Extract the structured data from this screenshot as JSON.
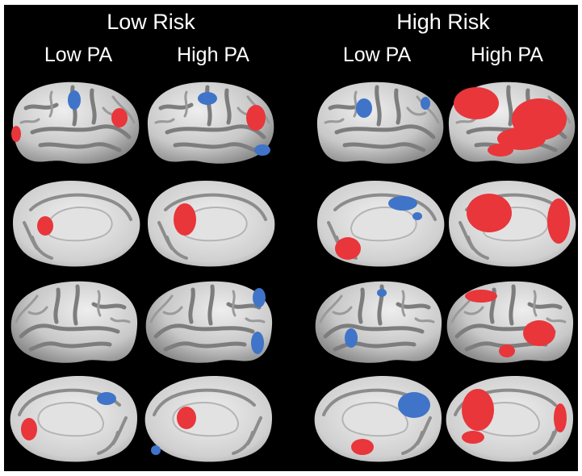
{
  "groups": {
    "left": {
      "title": "Low Risk",
      "pa_low": "Low PA",
      "pa_high": "High PA"
    },
    "right": {
      "title": "High Risk",
      "pa_low": "Low PA",
      "pa_high": "High PA"
    }
  },
  "colors": {
    "background": "#000000",
    "cortex": "#d2d2d2",
    "sulci": "#7d7d7d",
    "activation_positive": "#e8363b",
    "activation_negative": "#3f74c8"
  },
  "panels": [
    {
      "group": "Low Risk",
      "pa": "Low PA",
      "rows": [
        "lateral-left",
        "medial-left",
        "lateral-right",
        "medial-right"
      ]
    },
    {
      "group": "Low Risk",
      "pa": "High PA",
      "rows": [
        "lateral-left",
        "medial-left",
        "lateral-right",
        "medial-right"
      ]
    },
    {
      "group": "High Risk",
      "pa": "Low PA",
      "rows": [
        "lateral-left",
        "medial-left",
        "lateral-right",
        "medial-right"
      ]
    },
    {
      "group": "High Risk",
      "pa": "High PA",
      "rows": [
        "lateral-left",
        "medial-left",
        "lateral-right",
        "medial-right"
      ]
    }
  ]
}
